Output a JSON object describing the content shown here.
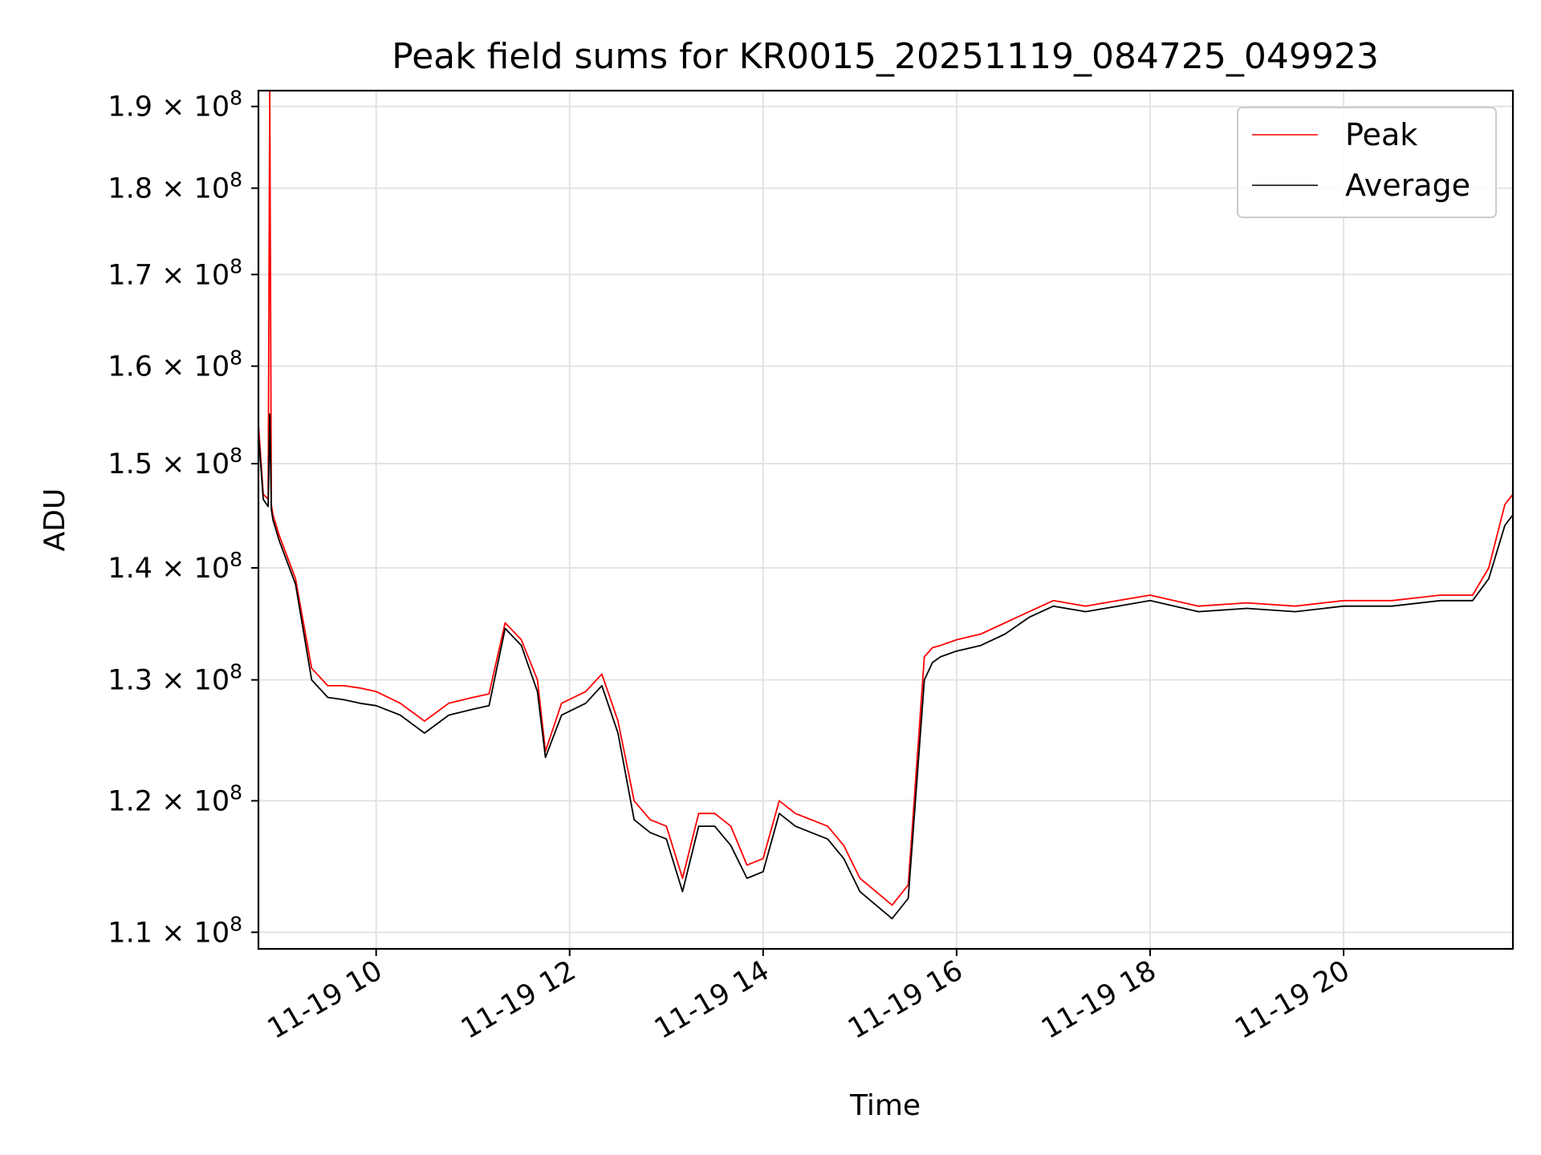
{
  "chart_data": {
    "type": "line",
    "title": "Peak field sums for KR0015_20251119_084725_049923",
    "xlabel": "Time",
    "ylabel": "ADU",
    "x_range": [
      "2025-11-19T08:47",
      "2025-11-19T21:45"
    ],
    "ylim": [
      108800000,
      192000000
    ],
    "y_scale": "log",
    "grid": true,
    "legend_position": "top-right",
    "x_ticks": [
      {
        "value": "2025-11-19T10:00",
        "label": "11-19 10"
      },
      {
        "value": "2025-11-19T12:00",
        "label": "11-19 12"
      },
      {
        "value": "2025-11-19T14:00",
        "label": "11-19 14"
      },
      {
        "value": "2025-11-19T16:00",
        "label": "11-19 16"
      },
      {
        "value": "2025-11-19T18:00",
        "label": "11-19 18"
      },
      {
        "value": "2025-11-19T20:00",
        "label": "11-19 20"
      }
    ],
    "y_ticks": [
      {
        "value": 110000000,
        "mantissa": "1.1",
        "base": "10",
        "exp": "8"
      },
      {
        "value": 120000000,
        "mantissa": "1.2",
        "base": "10",
        "exp": "8"
      },
      {
        "value": 130000000,
        "mantissa": "1.3",
        "base": "10",
        "exp": "8"
      },
      {
        "value": 140000000,
        "mantissa": "1.4",
        "base": "10",
        "exp": "8"
      },
      {
        "value": 150000000,
        "mantissa": "1.5",
        "base": "10",
        "exp": "8"
      },
      {
        "value": 160000000,
        "mantissa": "1.6",
        "base": "10",
        "exp": "8"
      },
      {
        "value": 170000000,
        "mantissa": "1.7",
        "base": "10",
        "exp": "8"
      },
      {
        "value": 180000000,
        "mantissa": "1.8",
        "base": "10",
        "exp": "8"
      },
      {
        "value": 190000000,
        "mantissa": "1.9",
        "base": "10",
        "exp": "8"
      }
    ],
    "series": [
      {
        "name": "Peak",
        "color": "#ff0000",
        "x": [
          "2025-11-19T08:47",
          "2025-11-19T08:50",
          "2025-11-19T08:53",
          "2025-11-19T08:54",
          "2025-11-19T08:55",
          "2025-11-19T08:56",
          "2025-11-19T09:00",
          "2025-11-19T09:10",
          "2025-11-19T09:20",
          "2025-11-19T09:30",
          "2025-11-19T09:40",
          "2025-11-19T09:50",
          "2025-11-19T10:00",
          "2025-11-19T10:15",
          "2025-11-19T10:30",
          "2025-11-19T10:45",
          "2025-11-19T11:00",
          "2025-11-19T11:10",
          "2025-11-19T11:20",
          "2025-11-19T11:30",
          "2025-11-19T11:40",
          "2025-11-19T11:45",
          "2025-11-19T11:55",
          "2025-11-19T12:10",
          "2025-11-19T12:20",
          "2025-11-19T12:30",
          "2025-11-19T12:40",
          "2025-11-19T12:50",
          "2025-11-19T13:00",
          "2025-11-19T13:10",
          "2025-11-19T13:20",
          "2025-11-19T13:30",
          "2025-11-19T13:40",
          "2025-11-19T13:50",
          "2025-11-19T14:00",
          "2025-11-19T14:10",
          "2025-11-19T14:20",
          "2025-11-19T14:30",
          "2025-11-19T14:40",
          "2025-11-19T14:50",
          "2025-11-19T15:00",
          "2025-11-19T15:10",
          "2025-11-19T15:20",
          "2025-11-19T15:30",
          "2025-11-19T15:40",
          "2025-11-19T15:45",
          "2025-11-19T15:50",
          "2025-11-19T16:00",
          "2025-11-19T16:15",
          "2025-11-19T16:30",
          "2025-11-19T16:45",
          "2025-11-19T17:00",
          "2025-11-19T17:20",
          "2025-11-19T17:40",
          "2025-11-19T18:00",
          "2025-11-19T18:30",
          "2025-11-19T19:00",
          "2025-11-19T19:30",
          "2025-11-19T20:00",
          "2025-11-19T20:30",
          "2025-11-19T21:00",
          "2025-11-19T21:20",
          "2025-11-19T21:30",
          "2025-11-19T21:40",
          "2025-11-19T21:45"
        ],
        "values": [
          154000000,
          147000000,
          146500000,
          192000000,
          146000000,
          145000000,
          143000000,
          139000000,
          131000000,
          129500000,
          129500000,
          129300000,
          129000000,
          128000000,
          126500000,
          128000000,
          128500000,
          128800000,
          135000000,
          133500000,
          130000000,
          124000000,
          128000000,
          129000000,
          130500000,
          126500000,
          120000000,
          118500000,
          118000000,
          114000000,
          119000000,
          119000000,
          118000000,
          115000000,
          115500000,
          120000000,
          119000000,
          118500000,
          118000000,
          116500000,
          114000000,
          113000000,
          112000000,
          113500000,
          132000000,
          132800000,
          133000000,
          133500000,
          134000000,
          135000000,
          136000000,
          137000000,
          136500000,
          137000000,
          137500000,
          136500000,
          136800000,
          136500000,
          137000000,
          137000000,
          137500000,
          137500000,
          140000000,
          146000000,
          147000000
        ]
      },
      {
        "name": "Average",
        "color": "#000000",
        "x": [
          "2025-11-19T08:47",
          "2025-11-19T08:50",
          "2025-11-19T08:53",
          "2025-11-19T08:54",
          "2025-11-19T08:55",
          "2025-11-19T08:56",
          "2025-11-19T09:00",
          "2025-11-19T09:10",
          "2025-11-19T09:20",
          "2025-11-19T09:30",
          "2025-11-19T09:40",
          "2025-11-19T09:50",
          "2025-11-19T10:00",
          "2025-11-19T10:15",
          "2025-11-19T10:30",
          "2025-11-19T10:45",
          "2025-11-19T11:00",
          "2025-11-19T11:10",
          "2025-11-19T11:20",
          "2025-11-19T11:30",
          "2025-11-19T11:40",
          "2025-11-19T11:45",
          "2025-11-19T11:55",
          "2025-11-19T12:10",
          "2025-11-19T12:20",
          "2025-11-19T12:30",
          "2025-11-19T12:40",
          "2025-11-19T12:50",
          "2025-11-19T13:00",
          "2025-11-19T13:10",
          "2025-11-19T13:20",
          "2025-11-19T13:30",
          "2025-11-19T13:40",
          "2025-11-19T13:50",
          "2025-11-19T14:00",
          "2025-11-19T14:10",
          "2025-11-19T14:20",
          "2025-11-19T14:30",
          "2025-11-19T14:40",
          "2025-11-19T14:50",
          "2025-11-19T15:00",
          "2025-11-19T15:10",
          "2025-11-19T15:20",
          "2025-11-19T15:30",
          "2025-11-19T15:40",
          "2025-11-19T15:45",
          "2025-11-19T15:50",
          "2025-11-19T16:00",
          "2025-11-19T16:15",
          "2025-11-19T16:30",
          "2025-11-19T16:45",
          "2025-11-19T17:00",
          "2025-11-19T17:20",
          "2025-11-19T17:40",
          "2025-11-19T18:00",
          "2025-11-19T18:30",
          "2025-11-19T19:00",
          "2025-11-19T19:30",
          "2025-11-19T20:00",
          "2025-11-19T20:30",
          "2025-11-19T21:00",
          "2025-11-19T21:20",
          "2025-11-19T21:30",
          "2025-11-19T21:40",
          "2025-11-19T21:45"
        ],
        "values": [
          153000000,
          146500000,
          145800000,
          155000000,
          145500000,
          144500000,
          142500000,
          138500000,
          130000000,
          128500000,
          128300000,
          128000000,
          127800000,
          127000000,
          125500000,
          127000000,
          127500000,
          127800000,
          134500000,
          133000000,
          129000000,
          123500000,
          127000000,
          128000000,
          129500000,
          125500000,
          118500000,
          117500000,
          117000000,
          113000000,
          118000000,
          118000000,
          116500000,
          114000000,
          114500000,
          119000000,
          118000000,
          117500000,
          117000000,
          115500000,
          113000000,
          112000000,
          111000000,
          112500000,
          130000000,
          131500000,
          132000000,
          132500000,
          133000000,
          134000000,
          135500000,
          136500000,
          136000000,
          136500000,
          137000000,
          136000000,
          136300000,
          136000000,
          136500000,
          136500000,
          137000000,
          137000000,
          139000000,
          144000000,
          145000000
        ]
      }
    ]
  }
}
